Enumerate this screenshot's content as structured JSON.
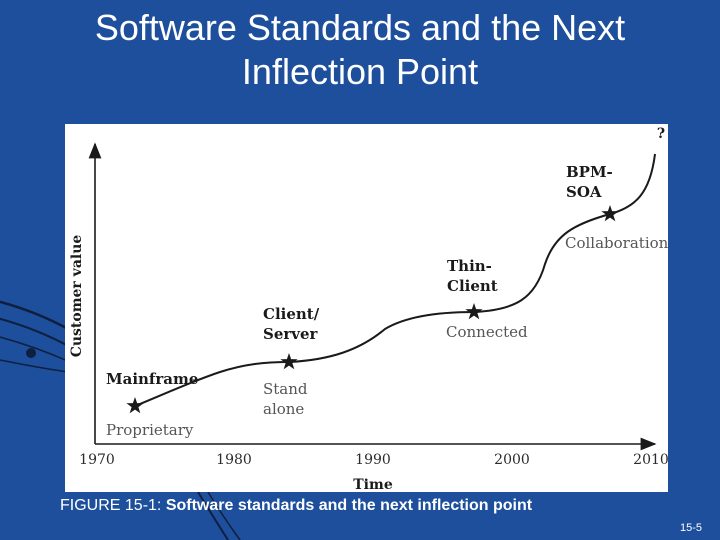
{
  "slide": {
    "title_line1": "Software Standards and the Next",
    "title_line2": "Inflection Point",
    "caption_prefix": "FIGURE 15-1: ",
    "caption_text": "Software standards and the next inflection point",
    "slide_number": "15-5"
  },
  "figure": {
    "y_axis_label": "Customer value",
    "x_axis_label": "Time",
    "x_ticks": [
      "1970",
      "1980",
      "1990",
      "2000",
      "2010"
    ],
    "unknown_future_mark": "?",
    "milestones": [
      {
        "era": [
          "Mainframe"
        ],
        "phase": [
          "Proprietary"
        ]
      },
      {
        "era": [
          "Client/",
          "Server"
        ],
        "phase": [
          "Stand",
          "alone"
        ]
      },
      {
        "era": [
          "Thin-",
          "Client"
        ],
        "phase": [
          "Connected"
        ]
      },
      {
        "era": [
          "BPM-",
          "SOA"
        ],
        "phase": [
          "Collaboration"
        ]
      }
    ]
  },
  "colors": {
    "slide_background": "#1d4f9c",
    "figure_background": "#ffffff",
    "curve": "#1a1a1a"
  }
}
